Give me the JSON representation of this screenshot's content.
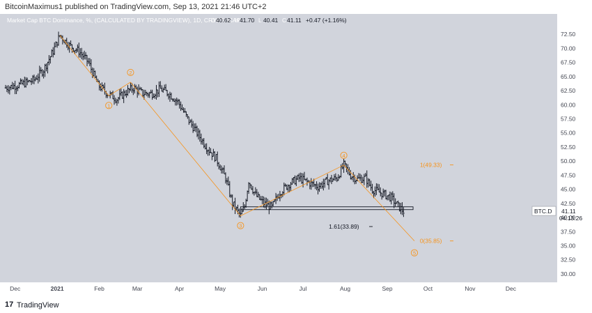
{
  "header": {
    "publisher_line": "BitcoinMaximus1 published on TradingView.com, Sep 13, 2021 21:46 UTC+2"
  },
  "footer": {
    "logo_text": "17",
    "brand": "TradingView"
  },
  "colors": {
    "plot_bg": "#d1d4dc",
    "axis_bg": "#ffffff",
    "candle": "#131722",
    "wave": "#f7931a",
    "support": "#131722",
    "price_tag_bg": "#ffffff"
  },
  "chart_data": {
    "type": "ohlc",
    "title": "Market Cap BTC Dominance, %, (CALCULATED BY TRADINGVIEW), 1D, CRYPTOCAP",
    "ohlc_header": [
      {
        "key": "O",
        "value": "40.62"
      },
      {
        "key": "H",
        "value": "41.70"
      },
      {
        "key": "L",
        "value": "40.41"
      },
      {
        "key": "C",
        "value": "41.11"
      },
      {
        "key": "chg",
        "value": "+0.47 (+1.16%)"
      }
    ],
    "x_ticks": [
      "Dec",
      "2021",
      "Feb",
      "Mar",
      "Apr",
      "May",
      "Jun",
      "Jul",
      "Aug",
      "Sep",
      "Oct",
      "Nov",
      "Dec"
    ],
    "y_ticks": [
      "72.50",
      "70.00",
      "67.50",
      "65.00",
      "62.50",
      "60.00",
      "57.50",
      "55.00",
      "52.50",
      "50.00",
      "47.50",
      "45.00",
      "42.50",
      "40.00",
      "37.50",
      "35.00",
      "32.50",
      "30.00"
    ],
    "ylim": [
      29.5,
      74.0
    ],
    "x_range": [
      "2020-11-24",
      "2021-12-31"
    ],
    "price_path": [
      [
        "2020-11-24",
        63.0
      ],
      [
        "2020-12-05",
        63.6
      ],
      [
        "2020-12-15",
        64.4
      ],
      [
        "2020-12-22",
        66.2
      ],
      [
        "2020-12-29",
        69.5
      ],
      [
        "2021-01-03",
        72.3
      ],
      [
        "2021-01-10",
        70.5
      ],
      [
        "2021-01-17",
        69.5
      ],
      [
        "2021-01-24",
        67.5
      ],
      [
        "2021-01-31",
        63.5
      ],
      [
        "2021-02-07",
        62.0
      ],
      [
        "2021-02-14",
        61.0
      ],
      [
        "2021-02-21",
        62.3
      ],
      [
        "2021-02-26",
        63.0
      ],
      [
        "2021-03-05",
        62.0
      ],
      [
        "2021-03-12",
        62.0
      ],
      [
        "2021-03-18",
        62.8
      ],
      [
        "2021-03-24",
        62.0
      ],
      [
        "2021-03-31",
        60.5
      ],
      [
        "2021-04-07",
        57.5
      ],
      [
        "2021-04-14",
        55.0
      ],
      [
        "2021-04-21",
        52.5
      ],
      [
        "2021-04-28",
        50.5
      ],
      [
        "2021-05-05",
        47.0
      ],
      [
        "2021-05-10",
        42.5
      ],
      [
        "2021-05-16",
        40.3
      ],
      [
        "2021-05-19",
        42.0
      ],
      [
        "2021-05-22",
        46.5
      ],
      [
        "2021-05-27",
        44.0
      ],
      [
        "2021-06-02",
        42.5
      ],
      [
        "2021-06-08",
        41.8
      ],
      [
        "2021-06-14",
        44.5
      ],
      [
        "2021-06-21",
        46.0
      ],
      [
        "2021-06-28",
        47.0
      ],
      [
        "2021-07-05",
        46.2
      ],
      [
        "2021-07-12",
        45.5
      ],
      [
        "2021-07-19",
        46.5
      ],
      [
        "2021-07-26",
        47.0
      ],
      [
        "2021-07-31",
        49.3
      ],
      [
        "2021-08-05",
        47.5
      ],
      [
        "2021-08-10",
        46.8
      ],
      [
        "2021-08-16",
        47.0
      ],
      [
        "2021-08-21",
        45.0
      ],
      [
        "2021-08-28",
        44.3
      ],
      [
        "2021-09-04",
        43.5
      ],
      [
        "2021-09-09",
        42.0
      ],
      [
        "2021-09-13",
        41.1
      ]
    ],
    "wave_count": [
      {
        "date": "2021-01-03",
        "price": 72.3,
        "label": "",
        "label_pos": "none"
      },
      {
        "date": "2021-02-08",
        "price": 61.6,
        "label": "1",
        "label_pos": "below"
      },
      {
        "date": "2021-02-24",
        "price": 64.0,
        "label": "2",
        "label_pos": "above"
      },
      {
        "date": "2021-05-16",
        "price": 40.3,
        "label": "3",
        "label_pos": "below"
      },
      {
        "date": "2021-07-31",
        "price": 49.3,
        "label": "4",
        "label_pos": "above"
      },
      {
        "date": "2021-09-21",
        "price": 35.85,
        "label": "5",
        "label_pos": "below"
      }
    ],
    "fib_levels": [
      {
        "label": "1(49.33)",
        "price": 49.33,
        "date": "2021-09-25",
        "color": "wave"
      },
      {
        "label": "0(35.85)",
        "price": 35.85,
        "date": "2021-09-25",
        "color": "wave"
      },
      {
        "label": "1.61(33.89)",
        "price": 38.4,
        "date": "2021-07-20",
        "color": "candle"
      }
    ],
    "support_zone": {
      "start": "2021-05-16",
      "end": "2021-09-20",
      "top": 41.9,
      "bottom": 41.4
    },
    "last_price": {
      "symbol": "BTC.D",
      "value": "41.11",
      "countdown": "04:13:26"
    }
  }
}
